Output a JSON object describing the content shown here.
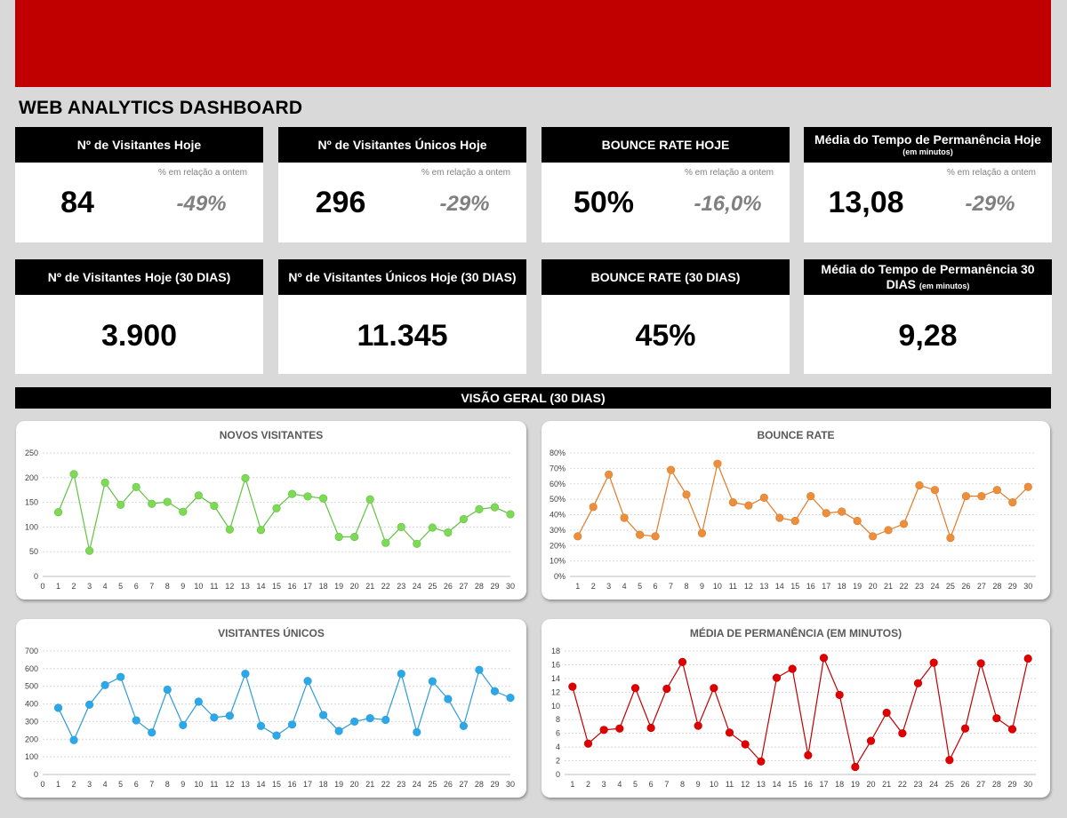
{
  "page_title": "WEB ANALYTICS DASHBOARD",
  "kpi_today": [
    {
      "title": "Nº de Visitantes Hoje",
      "subtitle": "",
      "value": "84",
      "delta_label": "% em relação a ontem",
      "delta": "-49%"
    },
    {
      "title": "Nº de Visitantes Únicos Hoje",
      "subtitle": "",
      "value": "296",
      "delta_label": "% em relação a ontem",
      "delta": "-29%"
    },
    {
      "title": "BOUNCE RATE HOJE",
      "subtitle": "",
      "value": "50%",
      "delta_label": "% em relação a ontem",
      "delta": "-16,0%"
    },
    {
      "title": "Média do Tempo de Permanência Hoje",
      "subtitle": "(em minutos)",
      "value": "13,08",
      "delta_label": "% em relação a ontem",
      "delta": "-29%"
    }
  ],
  "kpi_30days": [
    {
      "title": "Nº de Visitantes Hoje (30 DIAS)",
      "title2": "",
      "small": "",
      "value": "3.900"
    },
    {
      "title": "Nº de Visitantes Únicos Hoje (30 DIAS)",
      "title2": "",
      "small": "",
      "value": "11.345"
    },
    {
      "title": "BOUNCE RATE (30 DIAS)",
      "title2": "",
      "small": "",
      "value": "45%"
    },
    {
      "title": "Média do Tempo de Permanência 30",
      "title2": "DIAS",
      "small": "(em minutos)",
      "value": "9,28"
    }
  ],
  "section_title": "VISÃO GERAL (30 DIAS)",
  "colors": {
    "banner": "#c00000",
    "green": "#4cbb17",
    "orange": "#e07b28",
    "blue": "#1e9fe0",
    "red": "#e00000"
  },
  "chart_data": [
    {
      "type": "line",
      "title": "NOVOS VISITANTES",
      "x": [
        1,
        2,
        3,
        4,
        5,
        6,
        7,
        8,
        9,
        10,
        11,
        12,
        13,
        14,
        15,
        16,
        17,
        18,
        19,
        20,
        21,
        22,
        23,
        24,
        25,
        26,
        27,
        28,
        29,
        30
      ],
      "x_ticks": [
        "0",
        "1",
        "2",
        "3",
        "4",
        "5",
        "6",
        "7",
        "8",
        "9",
        "10",
        "11",
        "12",
        "13",
        "14",
        "15",
        "16",
        "17",
        "18",
        "19",
        "20",
        "21",
        "22",
        "23",
        "24",
        "25",
        "26",
        "27",
        "28",
        "29",
        "30"
      ],
      "values": [
        130,
        207,
        52,
        190,
        145,
        181,
        147,
        151,
        131,
        164,
        143,
        95,
        199,
        94,
        138,
        167,
        162,
        158,
        80,
        80,
        156,
        68,
        100,
        66,
        99,
        89,
        116,
        136,
        140,
        126
      ],
      "ylim": [
        0,
        250
      ],
      "ystep": 50,
      "y_format": "number",
      "y_ticks": [
        "0",
        "50",
        "100",
        "150",
        "200",
        "250"
      ],
      "line_color": "#62c241",
      "marker_color": "#7ed957"
    },
    {
      "type": "line",
      "title": "BOUNCE RATE",
      "x": [
        1,
        2,
        3,
        4,
        5,
        6,
        7,
        8,
        9,
        10,
        11,
        12,
        13,
        14,
        15,
        16,
        17,
        18,
        19,
        20,
        21,
        22,
        23,
        24,
        25,
        26,
        27,
        28,
        29,
        30
      ],
      "x_ticks": [
        "1",
        "2",
        "3",
        "4",
        "5",
        "6",
        "7",
        "8",
        "9",
        "10",
        "11",
        "12",
        "13",
        "14",
        "15",
        "16",
        "17",
        "18",
        "19",
        "20",
        "21",
        "22",
        "23",
        "24",
        "25",
        "26",
        "27",
        "28",
        "29",
        "30"
      ],
      "values": [
        26,
        45,
        66,
        38,
        27,
        26,
        69,
        53,
        28,
        73,
        48,
        46,
        51,
        38,
        36,
        52,
        41,
        42,
        36,
        26,
        30,
        34,
        59,
        56,
        25,
        52,
        52,
        56,
        48,
        58
      ],
      "ylim": [
        0,
        80
      ],
      "ystep": 10,
      "y_format": "percent",
      "y_ticks": [
        "0%",
        "10%",
        "20%",
        "30%",
        "40%",
        "50%",
        "60%",
        "70%",
        "80%"
      ],
      "line_color": "#e07b28",
      "marker_color": "#ec8f3d"
    },
    {
      "type": "line",
      "title": "VISITANTES ÚNICOS",
      "x": [
        1,
        2,
        3,
        4,
        5,
        6,
        7,
        8,
        9,
        10,
        11,
        12,
        13,
        14,
        15,
        16,
        17,
        18,
        19,
        20,
        21,
        22,
        23,
        24,
        25,
        26,
        27,
        28,
        29,
        30
      ],
      "x_ticks": [
        "0",
        "1",
        "2",
        "3",
        "4",
        "5",
        "6",
        "7",
        "8",
        "9",
        "10",
        "11",
        "12",
        "13",
        "14",
        "15",
        "16",
        "17",
        "18",
        "19",
        "20",
        "21",
        "22",
        "23",
        "24",
        "25",
        "26",
        "27",
        "28",
        "29",
        "30"
      ],
      "values": [
        378,
        195,
        396,
        507,
        553,
        307,
        238,
        481,
        280,
        413,
        323,
        333,
        571,
        275,
        221,
        283,
        530,
        337,
        247,
        300,
        319,
        310,
        571,
        240,
        528,
        428,
        275,
        593,
        472,
        435
      ],
      "ylim": [
        0,
        700
      ],
      "ystep": 100,
      "y_format": "number",
      "y_ticks": [
        "0",
        "100",
        "200",
        "300",
        "400",
        "500",
        "600",
        "700"
      ],
      "line_color": "#2e9bd6",
      "marker_color": "#2aa8e8"
    },
    {
      "type": "line",
      "title": "MÉDIA DE PERMANÊNCIA (EM MINUTOS)",
      "x": [
        1,
        2,
        3,
        4,
        5,
        6,
        7,
        8,
        9,
        10,
        11,
        12,
        13,
        14,
        15,
        16,
        17,
        18,
        19,
        20,
        21,
        22,
        23,
        24,
        25,
        26,
        27,
        28,
        29,
        30
      ],
      "x_ticks": [
        "1",
        "2",
        "3",
        "4",
        "5",
        "6",
        "7",
        "8",
        "9",
        "10",
        "11",
        "12",
        "13",
        "14",
        "15",
        "16",
        "17",
        "18",
        "19",
        "20",
        "21",
        "22",
        "23",
        "24",
        "25",
        "26",
        "27",
        "28",
        "29",
        "30"
      ],
      "values": [
        12.8,
        4.5,
        6.5,
        6.7,
        12.6,
        6.8,
        12.5,
        16.4,
        7.1,
        12.6,
        6.1,
        4.4,
        1.9,
        14.1,
        15.4,
        2.8,
        17.0,
        11.6,
        1.1,
        4.9,
        9.0,
        6.0,
        13.3,
        16.3,
        2.1,
        6.7,
        16.2,
        8.2,
        6.6,
        16.9
      ],
      "ylim": [
        0,
        18
      ],
      "ystep": 2,
      "y_format": "number",
      "y_ticks": [
        "0",
        "2",
        "4",
        "6",
        "8",
        "10",
        "12",
        "14",
        "16",
        "18"
      ],
      "line_color": "#c00000",
      "marker_color": "#e00000"
    }
  ]
}
